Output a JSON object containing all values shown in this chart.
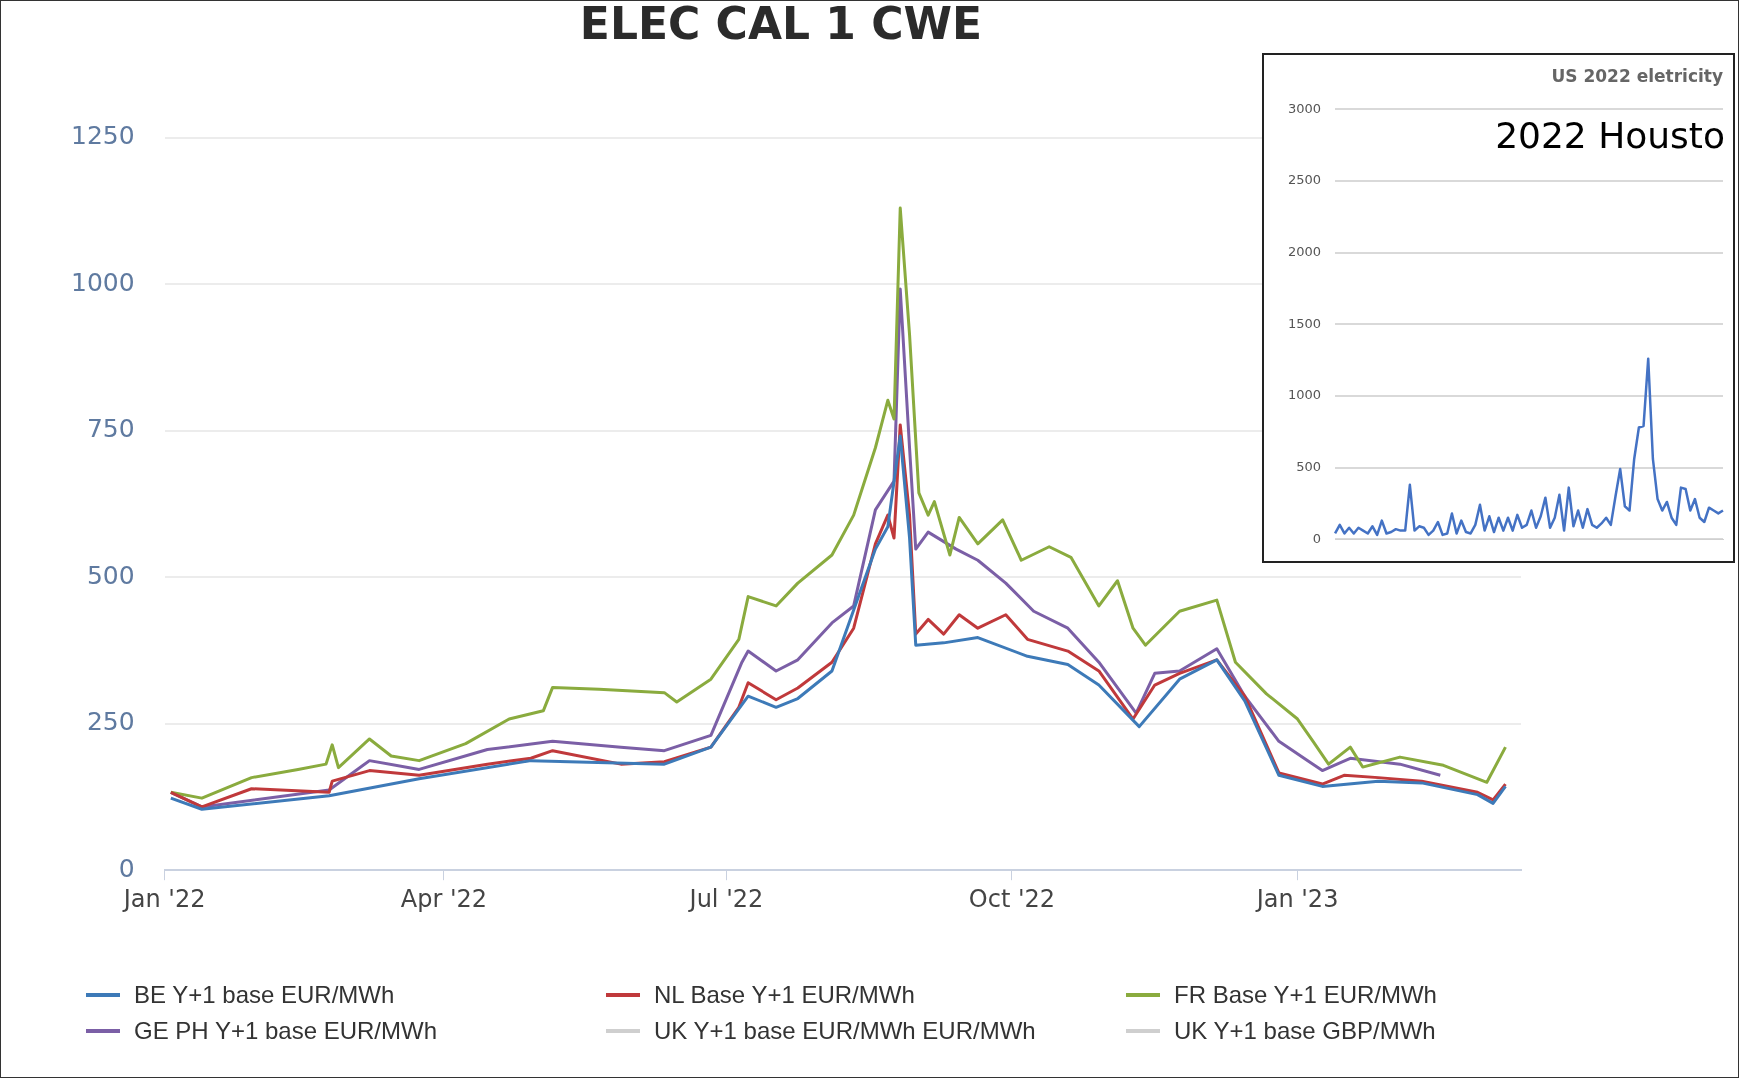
{
  "chart_data": [
    {
      "type": "line",
      "title": "ELEC CAL 1 CWE",
      "xlim": [
        "2022-01-01",
        "2023-03-14"
      ],
      "xticks": [
        {
          "value": "2022-01-01",
          "label": "Jan '22"
        },
        {
          "value": "2022-04-01",
          "label": "Apr '22"
        },
        {
          "value": "2022-07-01",
          "label": "Jul '22"
        },
        {
          "value": "2022-10-01",
          "label": "Oct '22"
        },
        {
          "value": "2023-01-01",
          "label": "Jan '23"
        }
      ],
      "ylim": [
        0,
        1250
      ],
      "yticks": [
        0,
        250,
        500,
        750,
        1000,
        1250
      ],
      "grid": "y",
      "legend": "bottom",
      "marker": "none",
      "line_style": "solid",
      "series": [
        {
          "name": "BE Y+1 base EUR/MWh",
          "color": "#3d7ab8",
          "x": [
            "2022-01-03",
            "2022-01-13",
            "2022-02-23",
            "2022-03-24",
            "2022-04-29",
            "2022-06-11",
            "2022-06-26",
            "2022-07-08",
            "2022-07-17",
            "2022-07-24",
            "2022-08-04",
            "2022-08-18",
            "2022-08-22",
            "2022-08-26",
            "2022-08-29",
            "2022-08-31",
            "2022-09-09",
            "2022-09-20",
            "2022-10-06",
            "2022-10-19",
            "2022-10-29",
            "2022-11-11",
            "2022-11-24",
            "2022-12-06",
            "2022-12-15",
            "2022-12-26",
            "2023-01-09",
            "2023-01-27",
            "2023-02-10",
            "2023-02-28",
            "2023-03-05",
            "2023-03-09"
          ],
          "values": [
            123,
            104,
            127,
            156,
            187,
            181,
            210,
            297,
            278,
            293,
            340,
            548,
            586,
            741,
            567,
            384,
            388,
            397,
            365,
            351,
            316,
            245,
            326,
            359,
            289,
            162,
            143,
            152,
            149,
            129,
            114,
            143
          ]
        },
        {
          "name": "NL Base Y+1 EUR/MWh",
          "color": "#c0393b",
          "x": [
            "2022-01-03",
            "2022-01-13",
            "2022-01-29",
            "2022-02-23",
            "2022-02-24",
            "2022-03-08",
            "2022-03-24",
            "2022-04-15",
            "2022-04-29",
            "2022-05-06",
            "2022-05-28",
            "2022-06-11",
            "2022-06-26",
            "2022-07-05",
            "2022-07-08",
            "2022-07-17",
            "2022-07-24",
            "2022-08-04",
            "2022-08-11",
            "2022-08-18",
            "2022-08-22",
            "2022-08-24",
            "2022-08-26",
            "2022-08-29",
            "2022-08-31",
            "2022-09-04",
            "2022-09-09",
            "2022-09-14",
            "2022-09-20",
            "2022-09-29",
            "2022-10-06",
            "2022-10-19",
            "2022-10-29",
            "2022-11-09",
            "2022-11-16",
            "2022-11-24",
            "2022-12-06",
            "2022-12-15",
            "2022-12-26",
            "2023-01-09",
            "2023-01-16",
            "2023-01-27",
            "2023-02-10",
            "2023-02-28",
            "2023-03-05",
            "2023-03-09"
          ],
          "values": [
            133,
            108,
            139,
            133,
            152,
            170,
            162,
            181,
            191,
            204,
            181,
            185,
            210,
            278,
            320,
            291,
            311,
            355,
            413,
            557,
            606,
            567,
            760,
            606,
            403,
            428,
            403,
            436,
            413,
            436,
            394,
            374,
            340,
            258,
            316,
            336,
            359,
            297,
            166,
            147,
            162,
            158,
            152,
            133,
            120,
            147
          ]
        },
        {
          "name": "FR Base Y+1 EUR/MWh",
          "color": "#8aab3e",
          "x": [
            "2022-01-03",
            "2022-01-13",
            "2022-01-29",
            "2022-02-13",
            "2022-02-22",
            "2022-02-24",
            "2022-02-26",
            "2022-03-08",
            "2022-03-15",
            "2022-03-24",
            "2022-04-08",
            "2022-04-22",
            "2022-05-03",
            "2022-05-06",
            "2022-05-21",
            "2022-06-11",
            "2022-06-15",
            "2022-06-26",
            "2022-07-05",
            "2022-07-08",
            "2022-07-17",
            "2022-07-24",
            "2022-08-04",
            "2022-08-11",
            "2022-08-18",
            "2022-08-22",
            "2022-08-24",
            "2022-08-26",
            "2022-08-29",
            "2022-09-01",
            "2022-09-04",
            "2022-09-06",
            "2022-09-11",
            "2022-09-14",
            "2022-09-20",
            "2022-09-28",
            "2022-10-04",
            "2022-10-13",
            "2022-10-20",
            "2022-10-29",
            "2022-11-04",
            "2022-11-09",
            "2022-11-13",
            "2022-11-24",
            "2022-12-06",
            "2022-12-12",
            "2022-12-22",
            "2023-01-01",
            "2023-01-06",
            "2023-01-11",
            "2023-01-18",
            "2023-01-22",
            "2023-02-03",
            "2023-02-17",
            "2023-03-03",
            "2023-03-09"
          ],
          "values": [
            133,
            123,
            158,
            172,
            181,
            214,
            175,
            224,
            195,
            187,
            216,
            258,
            272,
            312,
            309,
            303,
            287,
            326,
            394,
            467,
            451,
            490,
            538,
            606,
            721,
            802,
            770,
            1130,
            914,
            644,
            606,
            629,
            538,
            602,
            557,
            598,
            529,
            552,
            534,
            451,
            494,
            413,
            384,
            442,
            461,
            355,
            301,
            258,
            220,
            181,
            210,
            176,
            193,
            179,
            150,
            210
          ]
        },
        {
          "name": "GE PH Y+1 base EUR/MWh",
          "color": "#7b5fa6",
          "x": [
            "2022-01-03",
            "2022-01-13",
            "2022-02-23",
            "2022-03-08",
            "2022-03-24",
            "2022-04-15",
            "2022-05-06",
            "2022-05-28",
            "2022-06-11",
            "2022-06-26",
            "2022-07-06",
            "2022-07-08",
            "2022-07-17",
            "2022-07-24",
            "2022-08-04",
            "2022-08-11",
            "2022-08-18",
            "2022-08-24",
            "2022-08-26",
            "2022-08-29",
            "2022-08-31",
            "2022-09-04",
            "2022-09-13",
            "2022-09-20",
            "2022-09-29",
            "2022-10-08",
            "2022-10-19",
            "2022-10-29",
            "2022-11-10",
            "2022-11-16",
            "2022-11-24",
            "2022-12-06",
            "2022-12-15",
            "2022-12-26",
            "2023-01-09",
            "2023-01-18",
            "2023-02-03",
            "2023-02-16"
          ],
          "values": [
            133,
            108,
            137,
            187,
            172,
            206,
            220,
            210,
            204,
            230,
            355,
            374,
            340,
            359,
            422,
            451,
            615,
            664,
            992,
            721,
            548,
            577,
            548,
            529,
            490,
            442,
            413,
            355,
            268,
            336,
            340,
            378,
            297,
            220,
            170,
            191,
            181,
            162
          ]
        },
        {
          "name": "UK Y+1 base EUR/MWh EUR/MWh",
          "color": "#cfcfcf"
        },
        {
          "name": "UK Y+1 base GBP/MWh",
          "color": "#cfcfcf"
        }
      ]
    },
    {
      "type": "line",
      "title": "US 2022 eletricity",
      "subtitle": "2022 Housto",
      "categories": [
        null,
        null,
        null,
        null,
        null,
        null,
        null,
        null,
        null,
        null,
        null,
        null,
        null,
        null,
        null,
        null,
        null,
        null,
        null,
        null,
        null,
        null,
        null,
        null,
        null,
        null,
        null,
        null,
        null,
        null,
        null,
        null,
        null,
        null,
        null,
        null,
        null,
        null,
        null,
        null,
        null,
        null,
        null,
        null,
        null,
        null,
        null,
        null,
        null,
        null,
        null,
        null,
        null,
        null,
        null,
        null,
        null,
        null,
        null,
        null,
        null,
        null,
        null,
        null,
        null,
        null,
        null,
        null,
        null,
        null,
        null,
        null,
        null,
        null,
        null,
        null,
        null,
        null,
        null,
        null,
        null,
        null,
        null,
        null
      ],
      "ylim": [
        0,
        3000
      ],
      "yticks": [
        0,
        500,
        1000,
        1500,
        2000,
        2500,
        3000
      ],
      "grid": "y",
      "tick_labels": "y",
      "marker": "none",
      "series": [
        {
          "color": "#4472c4",
          "values": [
            40,
            100,
            40,
            80,
            40,
            80,
            60,
            40,
            90,
            30,
            130,
            40,
            50,
            70,
            60,
            60,
            380,
            60,
            90,
            80,
            30,
            60,
            120,
            30,
            40,
            180,
            40,
            130,
            50,
            40,
            100,
            240,
            60,
            160,
            50,
            150,
            60,
            150,
            60,
            170,
            80,
            100,
            200,
            80,
            160,
            290,
            80,
            150,
            310,
            60,
            360,
            90,
            200,
            80,
            210,
            100,
            80,
            110,
            150,
            100,
            300,
            490,
            230,
            200,
            560,
            780,
            790,
            1260,
            560,
            280,
            200,
            260,
            150,
            100,
            360,
            350,
            200,
            280,
            150,
            120,
            220,
            200,
            180,
            200
          ]
        }
      ]
    }
  ]
}
